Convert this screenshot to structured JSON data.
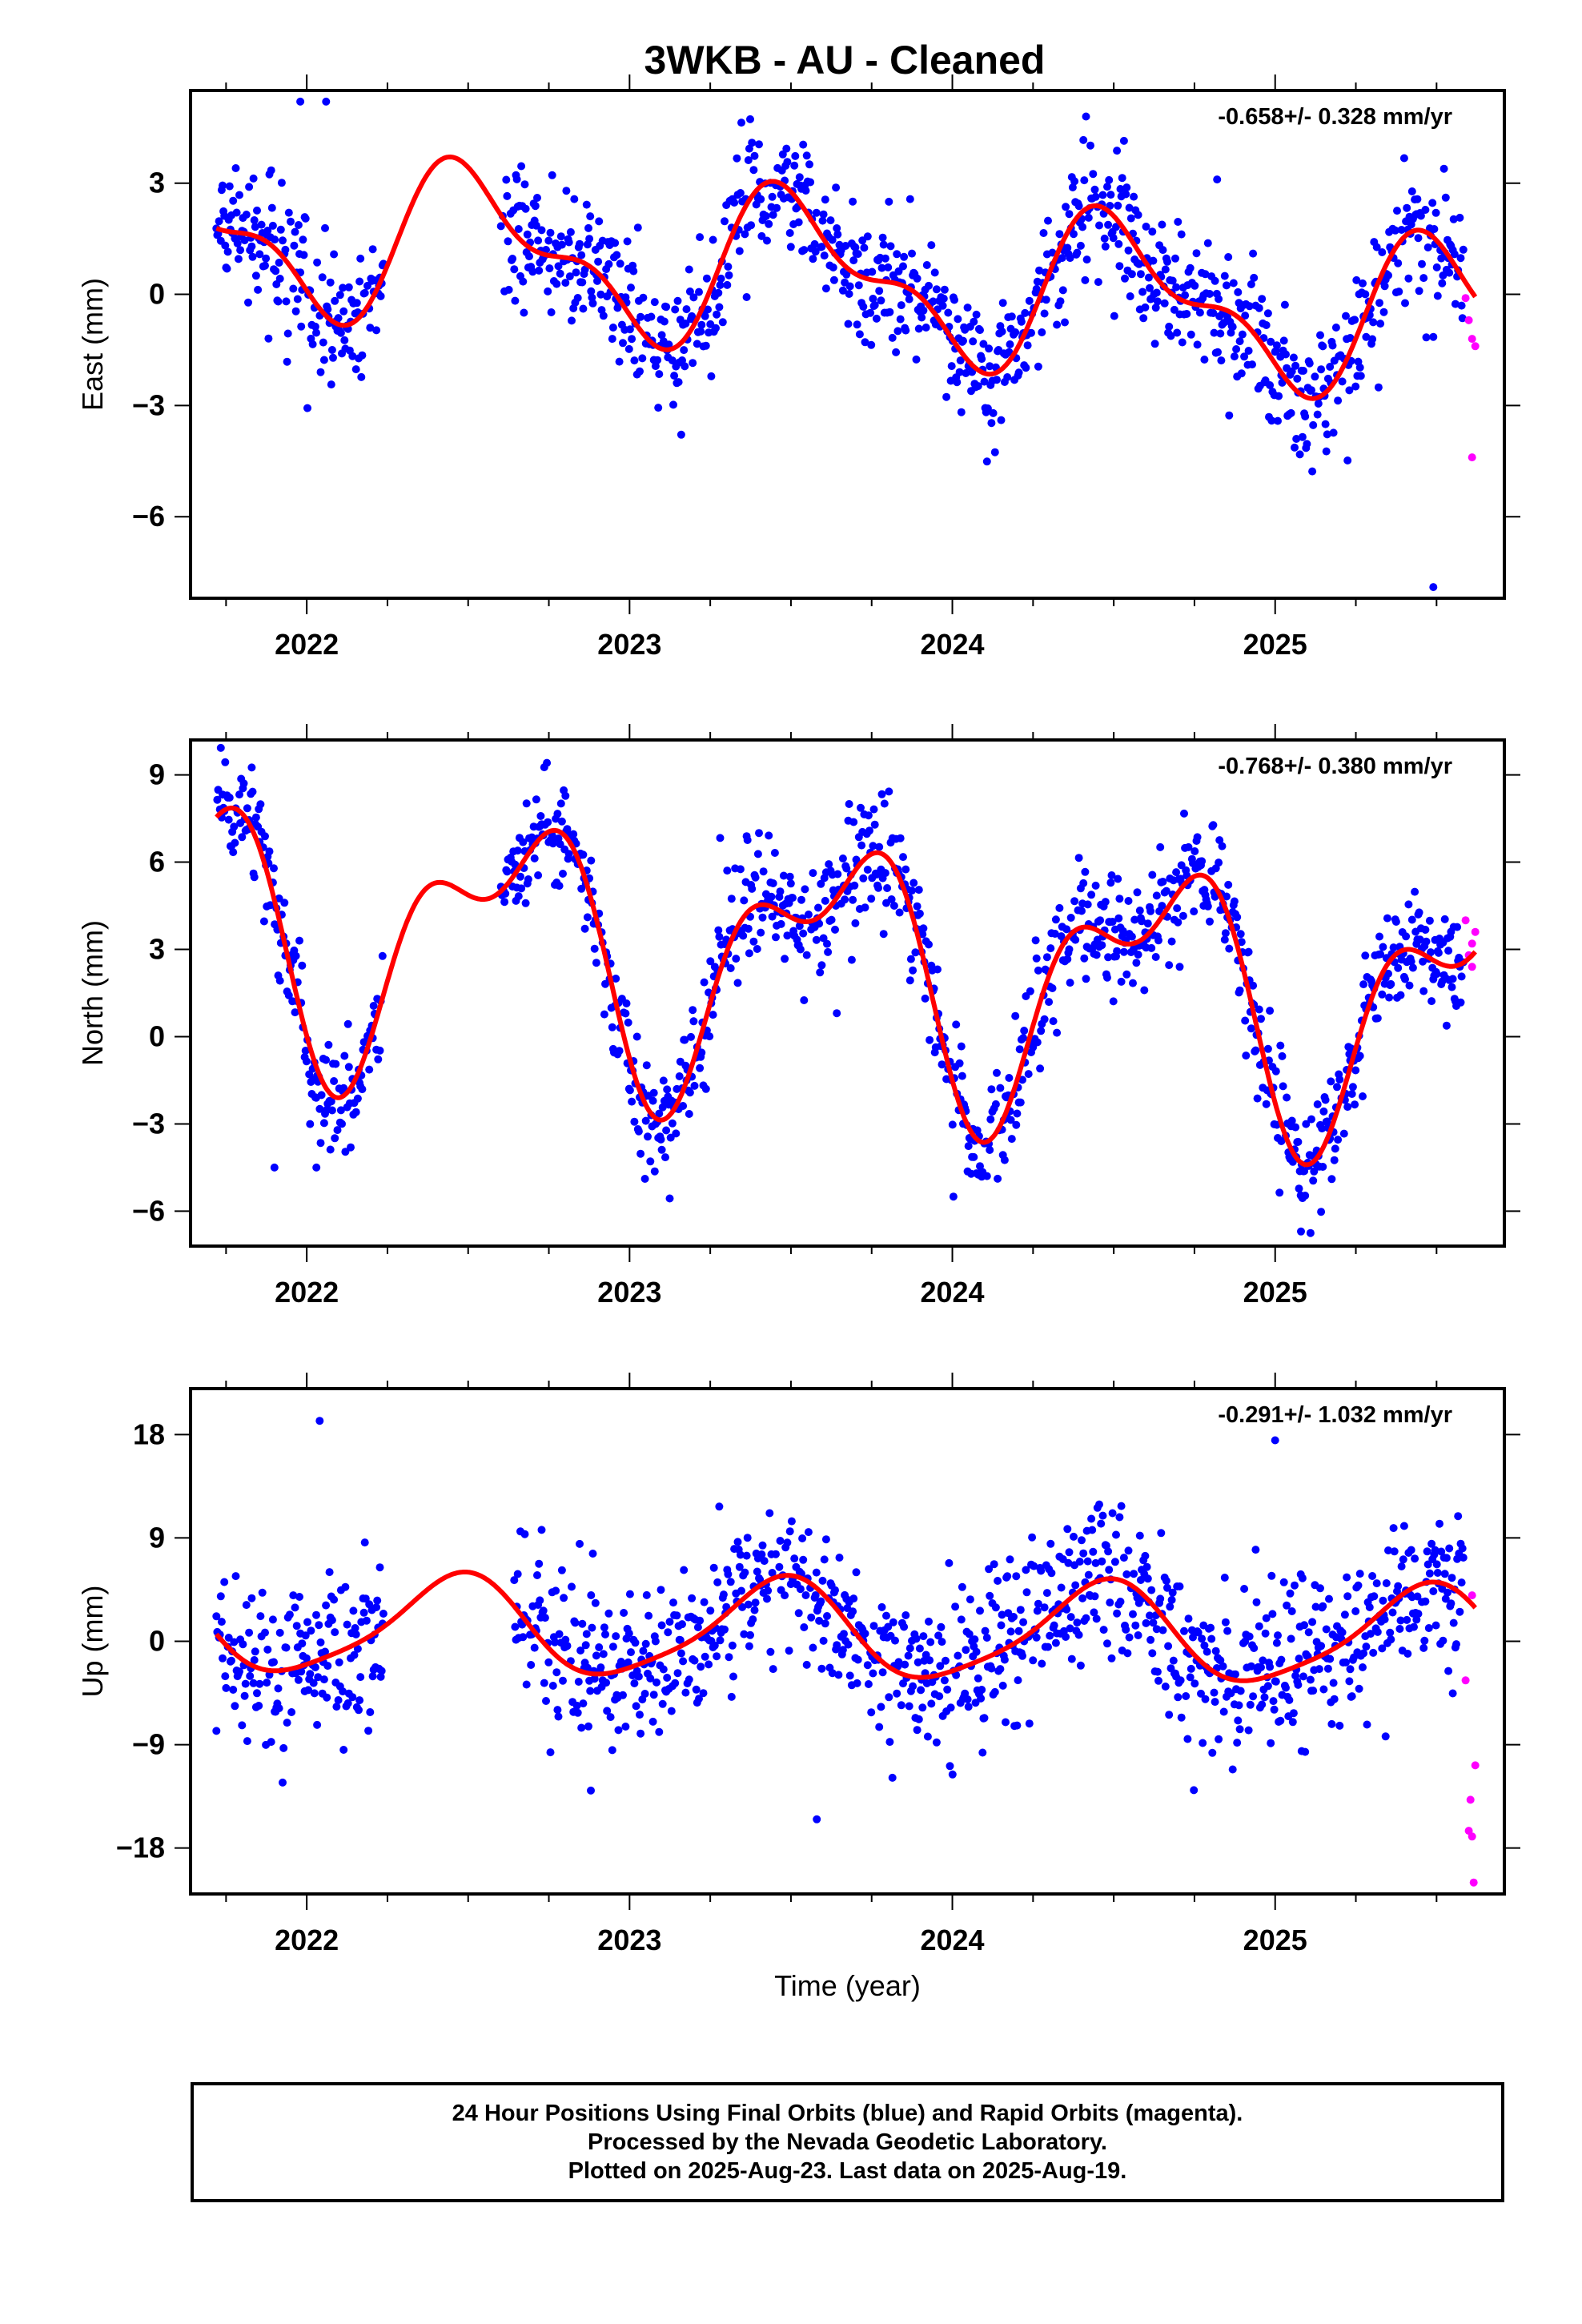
{
  "title": "3WKB  - AU - Cleaned",
  "colors": {
    "final_orbits": "#0000ff",
    "rapid_orbits": "#ff00ff",
    "model_fit": "#ff0000"
  },
  "footer": {
    "line1": "24 Hour Positions Using Final Orbits (blue) and Rapid Orbits (magenta).",
    "line2": "Processed by the Nevada Geodetic Laboratory.",
    "line3": "Plotted on 2025-Aug-23. Last data on 2025-Aug-19."
  },
  "chart_data": [
    {
      "type": "scatter",
      "ylabel": "East (mm)",
      "xlabel": "",
      "rate_text": "-0.658+/- 0.328 mm/yr",
      "xlim": [
        2021.64,
        2025.71
      ],
      "ylim": [
        -8.2,
        5.5
      ],
      "yticks": [
        -6,
        -3,
        0,
        3
      ],
      "ytick_labels": [
        "−6",
        "−3",
        "0",
        "3"
      ],
      "xticks": [
        2022,
        2023,
        2024,
        2025
      ],
      "xtick_labels": [
        "2022",
        "2023",
        "2024",
        "2025"
      ],
      "gaps": [
        [
          2022.24,
          2022.6
        ]
      ],
      "series": [
        {
          "role": "model",
          "offset": 0.6,
          "trend": -0.658,
          "amp1": 1.85,
          "phase1": 4.55,
          "amp2": 0.9,
          "phase2": 2.75,
          "x_start": 2021.72,
          "x_end": 2025.62
        },
        {
          "role": "final_orbits",
          "x_start": 2021.72,
          "x_end": 2025.585,
          "noise": 0.9,
          "extra_points": [
            [
              2021.98,
              5.2
            ],
            [
              2022.06,
              5.2
            ],
            [
              2025.49,
              -7.9
            ],
            [
              2024.82,
              3.1
            ]
          ]
        },
        {
          "role": "rapid_orbits",
          "points": [
            [
              2025.59,
              -0.1
            ],
            [
              2025.6,
              -0.7
            ],
            [
              2025.61,
              -1.2
            ],
            [
              2025.62,
              -1.4
            ],
            [
              2025.61,
              -4.4
            ]
          ]
        }
      ]
    },
    {
      "type": "scatter",
      "ylabel": "North (mm)",
      "xlabel": "",
      "rate_text": "-0.768+/- 0.380 mm/yr",
      "xlim": [
        2021.64,
        2025.71
      ],
      "ylim": [
        -7.2,
        10.2
      ],
      "yticks": [
        -6,
        -3,
        0,
        3,
        6,
        9
      ],
      "ytick_labels": [
        "−6",
        "−3",
        "0",
        "3",
        "6",
        "9"
      ],
      "xticks": [
        2022,
        2023,
        2024,
        2025
      ],
      "xtick_labels": [
        "2022",
        "2023",
        "2024",
        "2025"
      ],
      "gaps": [
        [
          2022.24,
          2022.6
        ]
      ],
      "series": [
        {
          "role": "model",
          "offset": 2.6,
          "trend": -0.768,
          "amp1": 3.8,
          "phase1": 3.9,
          "amp2": 2.1,
          "phase2": 3.7,
          "x_start": 2021.72,
          "x_end": 2025.62
        },
        {
          "role": "final_orbits",
          "x_start": 2021.72,
          "x_end": 2025.585,
          "noise": 1.0,
          "extra_points": [
            [
              2021.9,
              -4.5
            ],
            [
              2022.03,
              -4.5
            ],
            [
              2025.08,
              -6.7
            ]
          ]
        },
        {
          "role": "rapid_orbits",
          "points": [
            [
              2025.59,
              4.0
            ],
            [
              2025.6,
              2.8
            ],
            [
              2025.61,
              3.2
            ],
            [
              2025.62,
              3.6
            ],
            [
              2025.61,
              2.4
            ]
          ]
        }
      ]
    },
    {
      "type": "scatter",
      "ylabel": "Up (mm)",
      "xlabel": "Time (year)",
      "rate_text": "-0.291+/- 1.032 mm/yr",
      "xlim": [
        2021.64,
        2025.71
      ],
      "ylim": [
        -22,
        22
      ],
      "yticks": [
        -18,
        -9,
        0,
        9,
        18
      ],
      "ytick_labels": [
        "−18",
        "−9",
        "0",
        "9",
        "18"
      ],
      "xticks": [
        2022,
        2023,
        2024,
        2025
      ],
      "xtick_labels": [
        "2022",
        "2023",
        "2024",
        "2025"
      ],
      "gaps": [
        [
          2022.24,
          2022.64
        ]
      ],
      "series": [
        {
          "role": "model",
          "offset": 0.9,
          "trend": -0.291,
          "amp1": 4.2,
          "phase1": 4.95,
          "amp2": 0.8,
          "phase2": 1.2,
          "x_start": 2021.72,
          "x_end": 2025.62
        },
        {
          "role": "final_orbits",
          "x_start": 2021.72,
          "x_end": 2025.585,
          "noise": 3.6,
          "extra_points": [
            [
              2022.04,
              19.2
            ],
            [
              2025.0,
              17.5
            ],
            [
              2022.88,
              -13.0
            ],
            [
              2021.72,
              -7.8
            ],
            [
              2023.58,
              -15.5
            ]
          ]
        },
        {
          "role": "rapid_orbits",
          "points": [
            [
              2025.59,
              -3.4
            ],
            [
              2025.6,
              -16.5
            ],
            [
              2025.61,
              -17.0
            ],
            [
              2025.62,
              -10.8
            ],
            [
              2025.615,
              -21.0
            ],
            [
              2025.61,
              4.0
            ],
            [
              2025.605,
              -13.8
            ]
          ]
        }
      ]
    }
  ]
}
